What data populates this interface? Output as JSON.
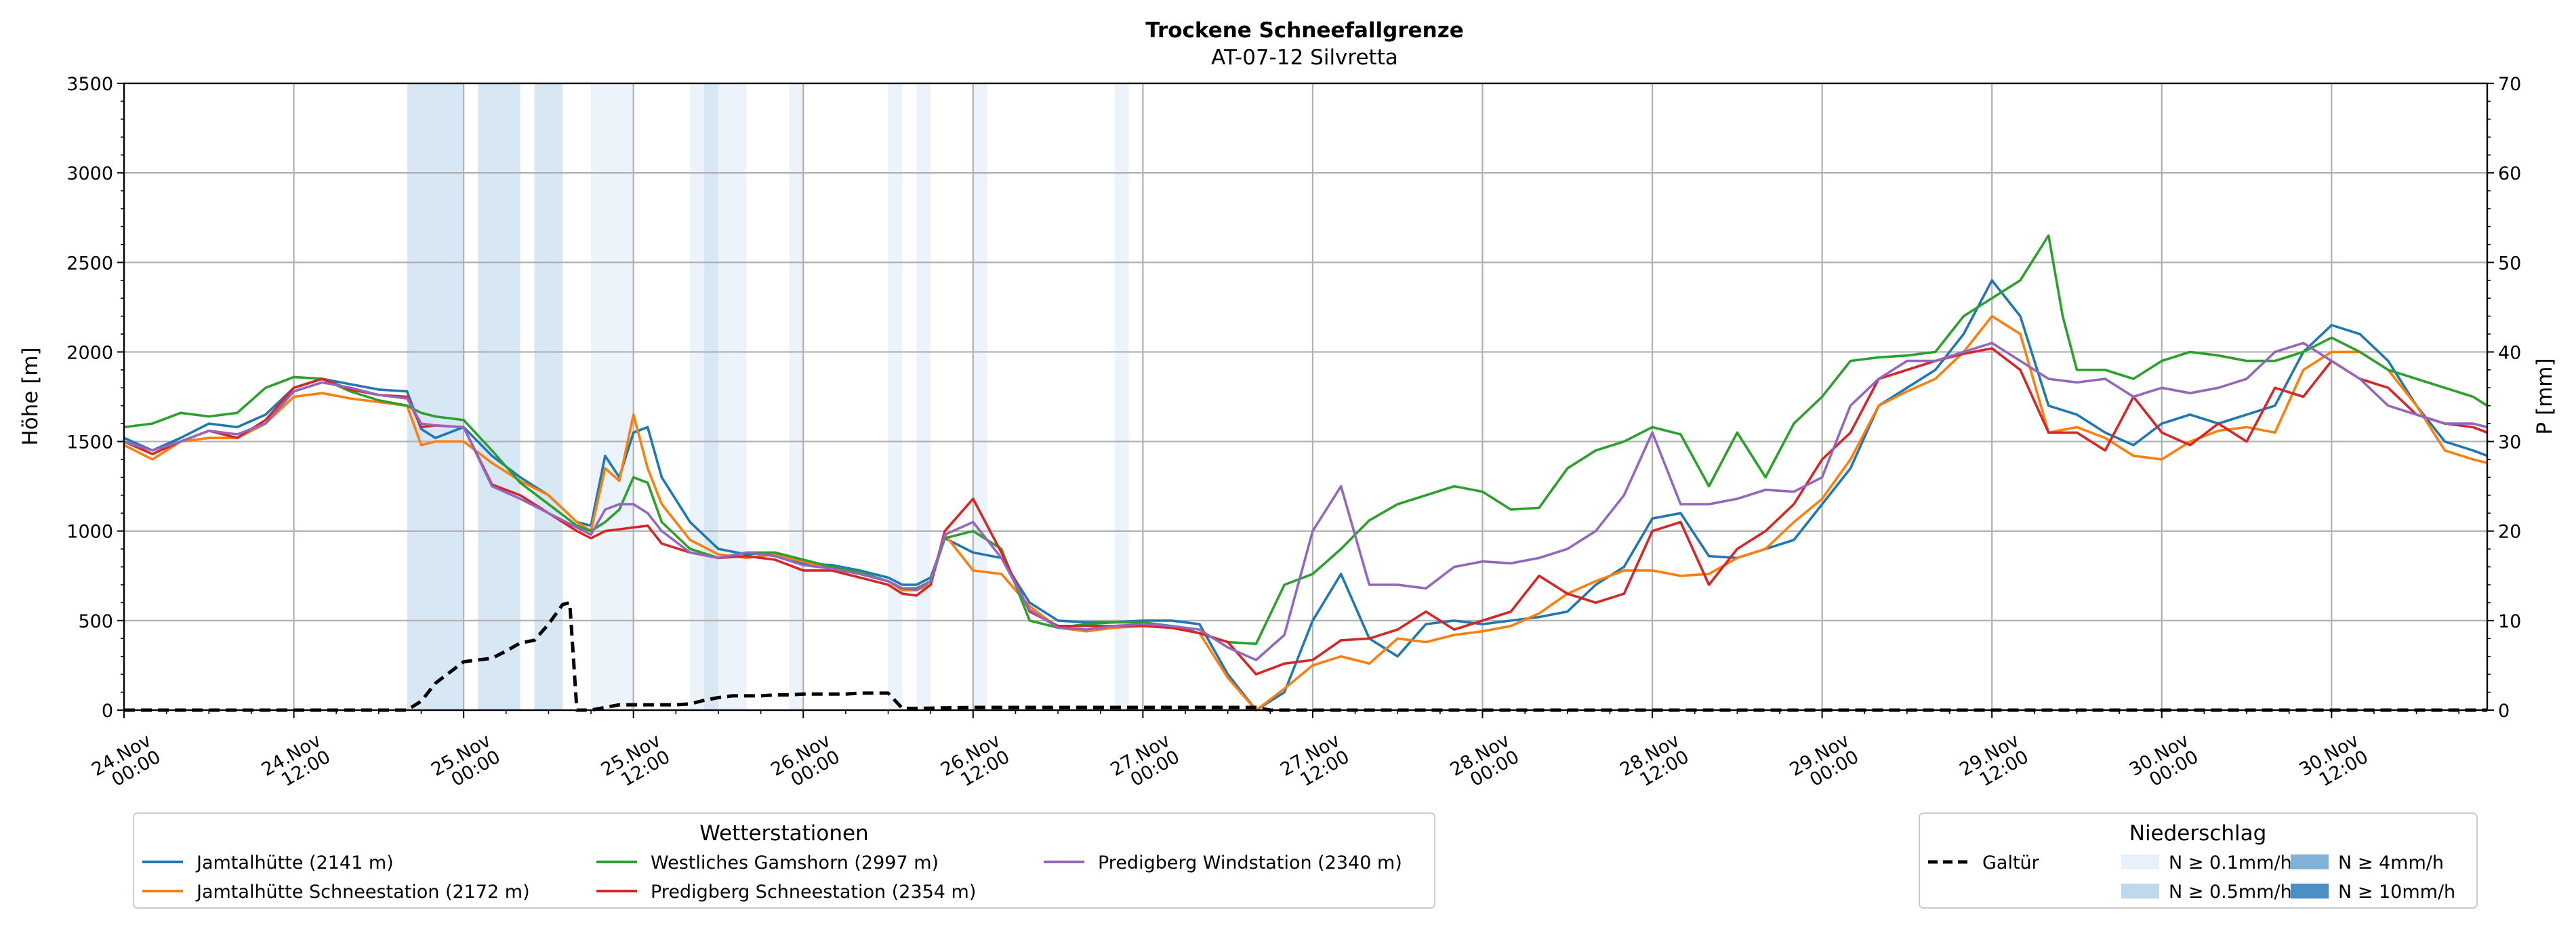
{
  "chart_data": {
    "type": "line",
    "title": "Trockene Schneefallgrenze",
    "subtitle": "AT-07-12 Silvretta",
    "ylabel": "Höhe [m]",
    "y2label": "P [mm]",
    "ylim": [
      0,
      3500
    ],
    "y2lim": [
      0,
      70
    ],
    "yticks": [
      0,
      500,
      1000,
      1500,
      2000,
      2500,
      3000,
      3500
    ],
    "y2ticks": [
      0,
      10,
      20,
      30,
      40,
      50,
      60,
      70
    ],
    "x_range_hours": [
      0,
      167
    ],
    "x_unit": "hours after 24.Nov 00:00",
    "xticks": [
      {
        "h": 0,
        "l1": "24.Nov",
        "l2": "00:00"
      },
      {
        "h": 12,
        "l1": "24.Nov",
        "l2": "12:00"
      },
      {
        "h": 24,
        "l1": "25.Nov",
        "l2": "00:00"
      },
      {
        "h": 36,
        "l1": "25.Nov",
        "l2": "12:00"
      },
      {
        "h": 48,
        "l1": "26.Nov",
        "l2": "00:00"
      },
      {
        "h": 60,
        "l1": "26.Nov",
        "l2": "12:00"
      },
      {
        "h": 72,
        "l1": "27.Nov",
        "l2": "00:00"
      },
      {
        "h": 84,
        "l1": "27.Nov",
        "l2": "12:00"
      },
      {
        "h": 96,
        "l1": "28.Nov",
        "l2": "00:00"
      },
      {
        "h": 108,
        "l1": "28.Nov",
        "l2": "12:00"
      },
      {
        "h": 120,
        "l1": "29.Nov",
        "l2": "00:00"
      },
      {
        "h": 132,
        "l1": "29.Nov",
        "l2": "12:00"
      },
      {
        "h": 144,
        "l1": "30.Nov",
        "l2": "00:00"
      },
      {
        "h": 156,
        "l1": "30.Nov",
        "l2": "12:00"
      }
    ],
    "grid": true,
    "precip_bands": [
      {
        "from": 20,
        "to": 24,
        "level": 1
      },
      {
        "from": 25,
        "to": 28,
        "level": 1
      },
      {
        "from": 29,
        "to": 31,
        "level": 1
      },
      {
        "from": 33,
        "to": 36,
        "level": 0
      },
      {
        "from": 40,
        "to": 41,
        "level": 0
      },
      {
        "from": 41,
        "to": 42,
        "level": 1
      },
      {
        "from": 42,
        "to": 44,
        "level": 0
      },
      {
        "from": 47,
        "to": 48,
        "level": 0
      },
      {
        "from": 54,
        "to": 55,
        "level": 0
      },
      {
        "from": 56,
        "to": 57,
        "level": 0
      },
      {
        "from": 60,
        "to": 61,
        "level": 0
      },
      {
        "from": 70,
        "to": 71,
        "level": 0
      }
    ],
    "series": [
      {
        "name": "Jamtalhütte (2141 m)",
        "color": "#1f77b4",
        "axis": "left",
        "x": [
          0,
          2,
          4,
          6,
          8,
          10,
          12,
          14,
          16,
          18,
          20,
          21,
          22,
          24,
          26,
          28,
          30,
          32,
          33,
          34,
          35,
          36,
          37,
          38,
          40,
          42,
          44,
          46,
          48,
          50,
          52,
          54,
          55,
          56,
          57,
          58,
          60,
          62,
          64,
          66,
          68,
          70,
          72,
          74,
          76,
          78,
          80,
          82,
          84,
          86,
          88,
          90,
          92,
          94,
          96,
          98,
          100,
          102,
          104,
          106,
          108,
          110,
          112,
          114,
          116,
          118,
          120,
          122,
          124,
          126,
          128,
          130,
          132,
          134,
          136,
          138,
          140,
          142,
          144,
          146,
          148,
          150,
          152,
          154,
          156,
          158,
          160,
          162,
          164,
          166,
          167
        ],
        "y": [
          1520,
          1450,
          1520,
          1600,
          1580,
          1650,
          1800,
          1850,
          1820,
          1790,
          1780,
          1570,
          1520,
          1580,
          1420,
          1300,
          1200,
          1050,
          1030,
          1420,
          1300,
          1550,
          1580,
          1300,
          1050,
          900,
          870,
          880,
          820,
          810,
          780,
          740,
          700,
          700,
          740,
          960,
          880,
          850,
          600,
          500,
          490,
          490,
          500,
          500,
          480,
          200,
          0,
          100,
          500,
          760,
          400,
          300,
          480,
          500,
          480,
          500,
          520,
          550,
          700,
          800,
          1070,
          1100,
          860,
          850,
          900,
          950,
          1150,
          1350,
          1700,
          1800,
          1900,
          2100,
          2400,
          2200,
          1700,
          1650,
          1550,
          1480,
          1600,
          1650,
          1600,
          1650,
          1700,
          2000,
          2150,
          2100,
          1950,
          1700,
          1500,
          1450,
          1420
        ]
      },
      {
        "name": "Jamtalhütte Schneestation (2172 m)",
        "color": "#ff7f0e",
        "axis": "left",
        "x": [
          0,
          2,
          4,
          6,
          8,
          10,
          12,
          14,
          16,
          18,
          20,
          21,
          22,
          24,
          26,
          28,
          30,
          32,
          33,
          34,
          35,
          36,
          37,
          38,
          40,
          42,
          44,
          46,
          48,
          50,
          52,
          54,
          55,
          56,
          57,
          58,
          60,
          62,
          64,
          66,
          68,
          70,
          72,
          74,
          76,
          78,
          80,
          82,
          84,
          86,
          88,
          90,
          92,
          94,
          96,
          98,
          100,
          102,
          104,
          106,
          108,
          110,
          112,
          114,
          116,
          118,
          120,
          122,
          124,
          126,
          128,
          130,
          132,
          134,
          136,
          138,
          140,
          142,
          144,
          146,
          148,
          150,
          152,
          154,
          156,
          158,
          160,
          162,
          164,
          166,
          167
        ],
        "y": [
          1480,
          1400,
          1500,
          1520,
          1520,
          1600,
          1750,
          1770,
          1740,
          1720,
          1700,
          1480,
          1500,
          1500,
          1380,
          1280,
          1200,
          1050,
          1000,
          1350,
          1280,
          1650,
          1350,
          1150,
          950,
          870,
          850,
          870,
          830,
          790,
          760,
          720,
          670,
          670,
          700,
          980,
          780,
          760,
          580,
          460,
          440,
          460,
          470,
          460,
          430,
          180,
          0,
          120,
          250,
          300,
          260,
          400,
          380,
          420,
          440,
          470,
          540,
          650,
          720,
          780,
          780,
          750,
          760,
          850,
          900,
          1050,
          1180,
          1400,
          1700,
          1780,
          1850,
          2000,
          2200,
          2100,
          1550,
          1580,
          1520,
          1420,
          1400,
          1500,
          1560,
          1580,
          1550,
          1900,
          2000,
          2000,
          1900,
          1700,
          1450,
          1400,
          1380
        ]
      },
      {
        "name": "Westliches Gamshorn (2997 m)",
        "color": "#2ca02c",
        "axis": "left",
        "x": [
          0,
          2,
          4,
          6,
          8,
          10,
          12,
          14,
          16,
          18,
          20,
          21,
          22,
          24,
          26,
          28,
          30,
          32,
          33,
          34,
          35,
          36,
          37,
          38,
          40,
          42,
          44,
          46,
          48,
          50,
          52,
          54,
          55,
          56,
          57,
          58,
          60,
          62,
          64,
          66,
          68,
          70,
          72,
          74,
          76,
          78,
          80,
          82,
          84,
          86,
          88,
          90,
          92,
          94,
          96,
          98,
          100,
          102,
          104,
          106,
          108,
          110,
          112,
          114,
          116,
          118,
          120,
          122,
          124,
          126,
          128,
          130,
          132,
          134,
          136,
          137,
          138,
          140,
          142,
          144,
          146,
          148,
          150,
          152,
          154,
          156,
          158,
          160,
          162,
          164,
          166,
          167
        ],
        "y": [
          1580,
          1600,
          1660,
          1640,
          1660,
          1800,
          1860,
          1850,
          1780,
          1730,
          1700,
          1660,
          1640,
          1620,
          1450,
          1270,
          1150,
          1030,
          1000,
          1050,
          1120,
          1300,
          1270,
          1050,
          900,
          850,
          880,
          880,
          840,
          800,
          770,
          720,
          680,
          680,
          720,
          960,
          1000,
          900,
          500,
          460,
          480,
          490,
          490,
          470,
          430,
          380,
          370,
          700,
          760,
          900,
          1060,
          1150,
          1200,
          1250,
          1220,
          1120,
          1130,
          1350,
          1450,
          1500,
          1580,
          1540,
          1250,
          1550,
          1300,
          1600,
          1750,
          1950,
          1970,
          1980,
          2000,
          2200,
          2300,
          2400,
          2650,
          2200,
          1900,
          1900,
          1850,
          1950,
          2000,
          1980,
          1950,
          1950,
          2000,
          2080,
          2000,
          1900,
          1850,
          1800,
          1750,
          1700
        ]
      },
      {
        "name": "Predigberg Schneestation (2354 m)",
        "color": "#d62728",
        "axis": "left",
        "x": [
          0,
          2,
          4,
          6,
          8,
          10,
          12,
          14,
          16,
          18,
          20,
          21,
          22,
          24,
          26,
          28,
          30,
          32,
          33,
          34,
          35,
          36,
          37,
          38,
          40,
          42,
          44,
          46,
          48,
          50,
          52,
          54,
          55,
          56,
          57,
          58,
          60,
          62,
          64,
          66,
          68,
          70,
          72,
          74,
          76,
          78,
          80,
          82,
          84,
          86,
          88,
          90,
          92,
          94,
          96,
          98,
          100,
          102,
          104,
          106,
          108,
          110,
          112,
          114,
          116,
          118,
          120,
          122,
          124,
          126,
          128,
          130,
          132,
          134,
          136,
          138,
          140,
          142,
          144,
          146,
          148,
          150,
          152,
          154,
          156,
          158,
          160,
          162,
          164,
          166,
          167
        ],
        "y": [
          1500,
          1430,
          1500,
          1560,
          1520,
          1620,
          1800,
          1850,
          1790,
          1760,
          1750,
          1580,
          1590,
          1580,
          1260,
          1200,
          1100,
          1000,
          960,
          1000,
          1010,
          1020,
          1030,
          930,
          880,
          850,
          860,
          840,
          780,
          780,
          740,
          700,
          650,
          640,
          700,
          1000,
          1180,
          880,
          550,
          470,
          470,
          470,
          470,
          460,
          430,
          380,
          200,
          260,
          280,
          390,
          400,
          450,
          550,
          450,
          500,
          550,
          750,
          650,
          600,
          650,
          1000,
          1050,
          700,
          900,
          1000,
          1150,
          1400,
          1550,
          1850,
          1900,
          1950,
          1990,
          2020,
          1900,
          1550,
          1550,
          1450,
          1750,
          1550,
          1480,
          1600,
          1500,
          1800,
          1750,
          1950,
          1850,
          1800,
          1650,
          1600,
          1580,
          1550
        ]
      },
      {
        "name": "Predigberg Windstation (2340 m)",
        "color": "#9467bd",
        "axis": "left",
        "x": [
          0,
          2,
          4,
          6,
          8,
          10,
          12,
          14,
          16,
          18,
          20,
          21,
          22,
          24,
          26,
          28,
          30,
          32,
          33,
          34,
          35,
          36,
          37,
          38,
          40,
          42,
          44,
          46,
          48,
          50,
          52,
          54,
          55,
          56,
          57,
          58,
          60,
          62,
          64,
          66,
          68,
          70,
          72,
          74,
          76,
          78,
          80,
          82,
          84,
          86,
          88,
          90,
          92,
          94,
          96,
          98,
          100,
          102,
          104,
          106,
          108,
          110,
          112,
          114,
          116,
          118,
          120,
          122,
          124,
          126,
          128,
          130,
          132,
          134,
          136,
          138,
          140,
          142,
          144,
          146,
          148,
          150,
          152,
          154,
          156,
          158,
          160,
          162,
          164,
          166,
          167
        ],
        "y": [
          1500,
          1450,
          1500,
          1560,
          1540,
          1600,
          1780,
          1830,
          1800,
          1760,
          1740,
          1600,
          1590,
          1580,
          1250,
          1180,
          1100,
          1020,
          980,
          1120,
          1150,
          1150,
          1100,
          1000,
          880,
          850,
          880,
          860,
          810,
          790,
          760,
          720,
          680,
          670,
          720,
          980,
          1050,
          850,
          560,
          460,
          450,
          470,
          480,
          470,
          450,
          350,
          280,
          420,
          1000,
          1250,
          700,
          700,
          680,
          800,
          830,
          820,
          850,
          900,
          1000,
          1200,
          1550,
          1150,
          1150,
          1180,
          1230,
          1220,
          1300,
          1700,
          1850,
          1950,
          1950,
          2000,
          2050,
          1950,
          1850,
          1830,
          1850,
          1750,
          1800,
          1770,
          1800,
          1850,
          2000,
          2050,
          1950,
          1850,
          1700,
          1650,
          1600,
          1600,
          1580
        ]
      },
      {
        "name": "Galtür",
        "color": "#000000",
        "axis": "right",
        "dashed": true,
        "x": [
          0,
          20,
          21,
          22,
          24,
          25,
          26,
          27,
          28,
          29,
          30,
          31,
          31.5,
          32,
          33,
          34,
          35,
          36,
          37,
          38,
          39,
          40,
          41,
          42,
          43,
          44,
          45,
          46,
          47,
          48,
          49,
          50,
          51,
          52,
          53,
          54,
          55,
          56,
          60,
          70,
          80,
          81,
          167
        ],
        "y": [
          0,
          0,
          1,
          3,
          5.4,
          5.6,
          5.8,
          6.6,
          7.5,
          7.8,
          9.6,
          11.8,
          12,
          0,
          0,
          0.3,
          0.6,
          0.6,
          0.6,
          0.6,
          0.6,
          0.7,
          1.1,
          1.4,
          1.6,
          1.6,
          1.6,
          1.7,
          1.7,
          1.8,
          1.8,
          1.8,
          1.8,
          1.9,
          1.9,
          1.9,
          0.2,
          0.2,
          0.3,
          0.3,
          0.3,
          0,
          0
        ]
      }
    ]
  },
  "legend_stations": {
    "title": "Wetterstationen",
    "items": [
      "Jamtalhütte (2141 m)",
      "Jamtalhütte Schneestation (2172 m)",
      "Westliches Gamshorn (2997 m)",
      "Predigberg Schneestation (2354 m)",
      "Predigberg Windstation (2340 m)"
    ]
  },
  "legend_precip": {
    "title": "Niederschlag",
    "line_label": "Galtür",
    "items": [
      {
        "label": "N ≥ 0.1mm/h",
        "color": "#e8f0f9"
      },
      {
        "label": "N ≥ 0.5mm/h",
        "color": "#c0d8ec"
      },
      {
        "label": "N ≥ 4mm/h",
        "color": "#7fb3da"
      },
      {
        "label": "N ≥ 10mm/h",
        "color": "#4a90c2"
      }
    ]
  },
  "band_colors": [
    "#edf3fa",
    "#d8e7f4",
    "#a9cbe6",
    "#4a90c2"
  ]
}
